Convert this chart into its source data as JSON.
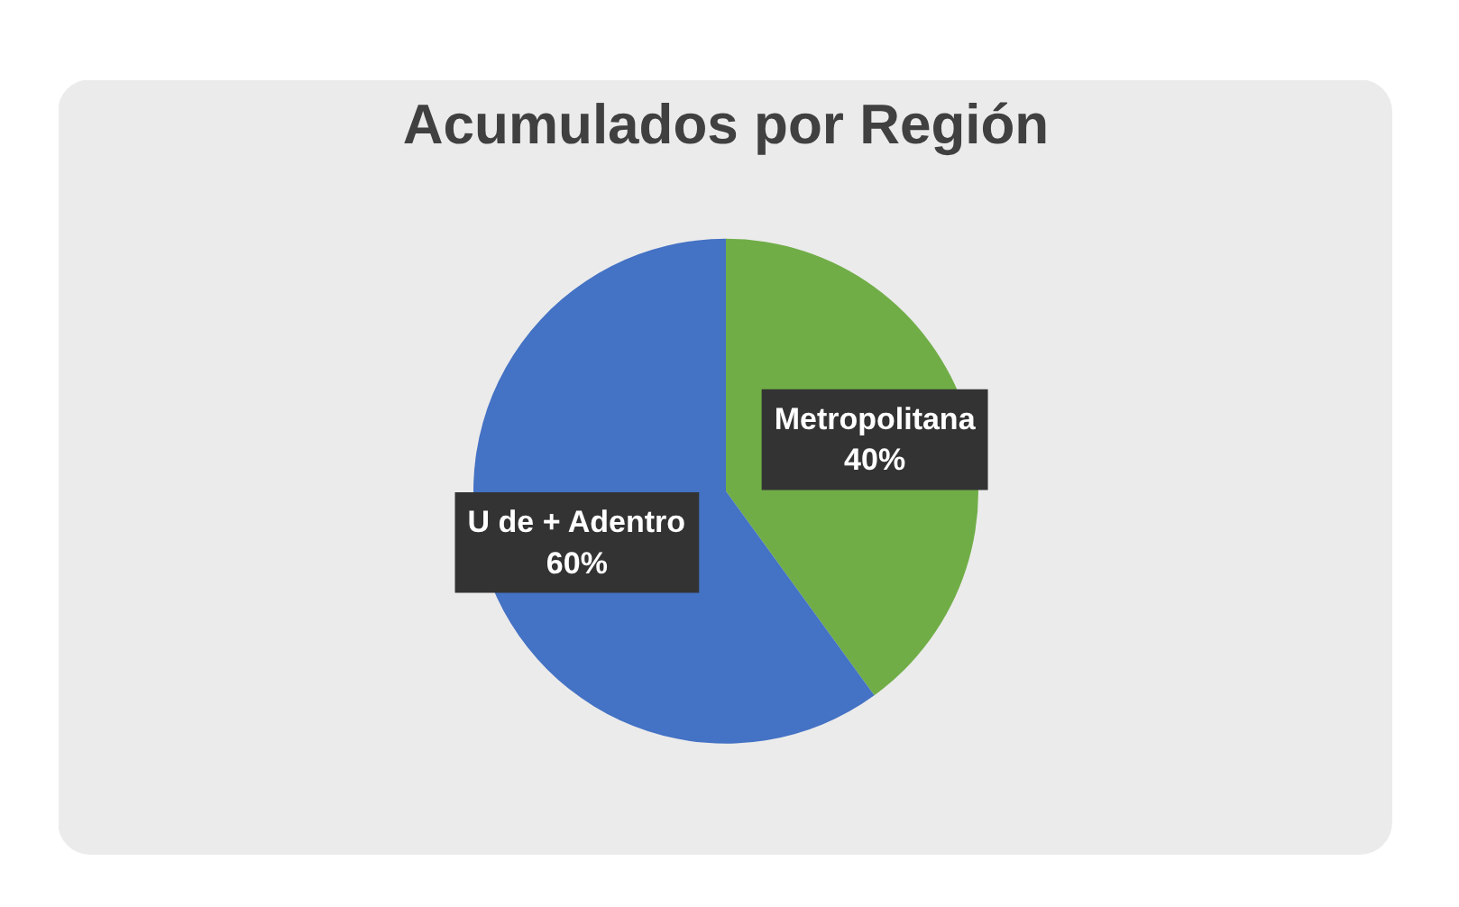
{
  "chart_data": {
    "type": "pie",
    "title": "Acumulados por Región",
    "categories": [
      "Metropolitana",
      "U de + Adentro"
    ],
    "values": [
      40,
      60
    ],
    "colors": [
      "#70ad47",
      "#4472c4"
    ],
    "value_labels": [
      "40%",
      "60%"
    ]
  }
}
